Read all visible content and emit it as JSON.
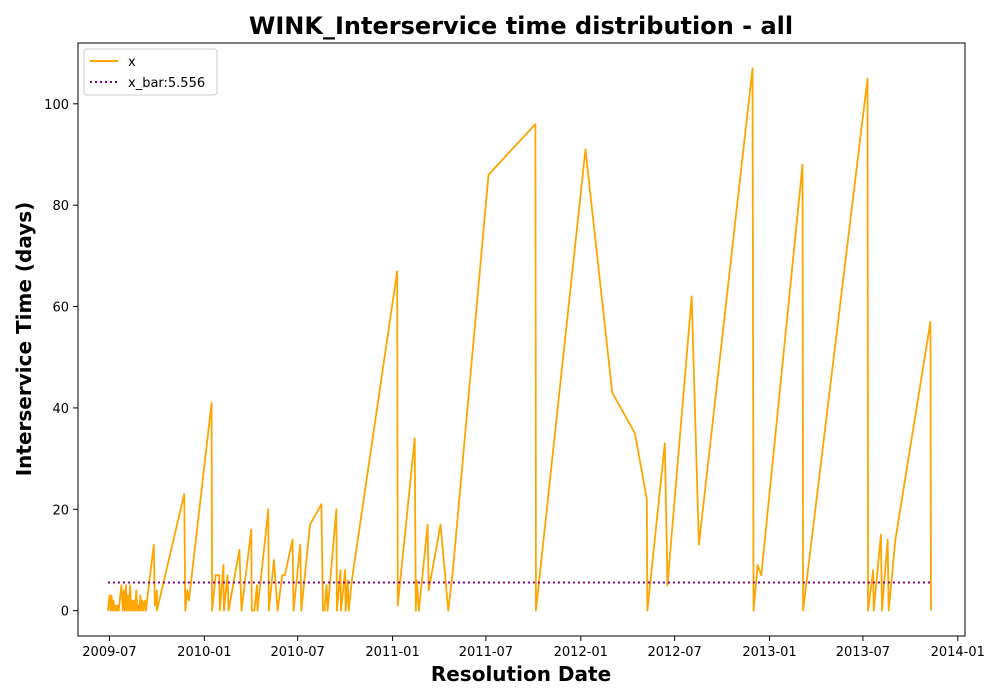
{
  "chart_data": {
    "type": "line",
    "title": "WINK_Interservice time distribution - all",
    "xlabel": "Resolution Date",
    "ylabel": "Interservice Time (days)",
    "x_axis_type": "date",
    "xlim": [
      "2009-05-01",
      "2014-01-15"
    ],
    "ylim": [
      -5,
      112
    ],
    "xticks": [
      "2009-07",
      "2010-01",
      "2010-07",
      "2011-01",
      "2011-07",
      "2012-01",
      "2012-07",
      "2013-01",
      "2013-07",
      "2014-01"
    ],
    "yticks": [
      0,
      20,
      40,
      60,
      80,
      100
    ],
    "grid": false,
    "legend_position": "upper-left",
    "colors": {
      "x": "#ffa500",
      "x_bar": "#800080"
    },
    "series": [
      {
        "name": "x",
        "style": "solid",
        "points": [
          [
            "2009-06-28",
            0
          ],
          [
            "2009-07-01",
            3
          ],
          [
            "2009-07-03",
            0
          ],
          [
            "2009-07-05",
            3
          ],
          [
            "2009-07-07",
            0
          ],
          [
            "2009-07-09",
            2
          ],
          [
            "2009-07-11",
            0
          ],
          [
            "2009-07-13",
            1
          ],
          [
            "2009-07-15",
            0
          ],
          [
            "2009-07-17",
            1
          ],
          [
            "2009-07-19",
            0
          ],
          [
            "2009-07-24",
            5
          ],
          [
            "2009-07-27",
            0
          ],
          [
            "2009-07-29",
            4
          ],
          [
            "2009-07-31",
            0
          ],
          [
            "2009-08-02",
            5
          ],
          [
            "2009-08-04",
            0
          ],
          [
            "2009-08-06",
            3
          ],
          [
            "2009-08-08",
            0
          ],
          [
            "2009-08-10",
            5
          ],
          [
            "2009-08-12",
            0
          ],
          [
            "2009-08-14",
            2
          ],
          [
            "2009-08-16",
            0
          ],
          [
            "2009-08-18",
            2
          ],
          [
            "2009-08-20",
            0
          ],
          [
            "2009-08-22",
            4
          ],
          [
            "2009-08-24",
            0
          ],
          [
            "2009-08-26",
            1
          ],
          [
            "2009-08-28",
            0
          ],
          [
            "2009-08-30",
            3
          ],
          [
            "2009-09-01",
            0
          ],
          [
            "2009-09-03",
            2
          ],
          [
            "2009-09-05",
            0
          ],
          [
            "2009-09-08",
            2
          ],
          [
            "2009-09-10",
            0
          ],
          [
            "2009-09-13",
            3
          ],
          [
            "2009-09-25",
            13
          ],
          [
            "2009-09-27",
            1
          ],
          [
            "2009-10-01",
            4
          ],
          [
            "2009-10-01",
            0
          ],
          [
            "2009-11-23",
            23
          ],
          [
            "2009-11-25",
            0
          ],
          [
            "2009-11-29",
            4
          ],
          [
            "2009-12-02",
            2
          ],
          [
            "2010-01-15",
            41
          ],
          [
            "2010-01-16",
            0
          ],
          [
            "2010-01-23",
            7
          ],
          [
            "2010-01-30",
            7
          ],
          [
            "2010-01-31",
            0
          ],
          [
            "2010-02-07",
            9
          ],
          [
            "2010-02-08",
            0
          ],
          [
            "2010-02-15",
            7
          ],
          [
            "2010-02-17",
            0
          ],
          [
            "2010-03-10",
            12
          ],
          [
            "2010-03-14",
            0
          ],
          [
            "2010-04-02",
            16
          ],
          [
            "2010-04-03",
            0
          ],
          [
            "2010-04-08",
            0
          ],
          [
            "2010-04-13",
            5
          ],
          [
            "2010-04-14",
            0
          ],
          [
            "2010-05-05",
            20
          ],
          [
            "2010-05-06",
            0
          ],
          [
            "2010-05-16",
            10
          ],
          [
            "2010-05-23",
            0
          ],
          [
            "2010-06-01",
            7
          ],
          [
            "2010-06-06",
            7
          ],
          [
            "2010-06-21",
            14
          ],
          [
            "2010-06-23",
            0
          ],
          [
            "2010-07-06",
            13
          ],
          [
            "2010-07-08",
            0
          ],
          [
            "2010-07-25",
            17
          ],
          [
            "2010-08-16",
            21
          ],
          [
            "2010-08-19",
            0
          ],
          [
            "2010-08-22",
            0
          ],
          [
            "2010-08-26",
            5
          ],
          [
            "2010-08-28",
            0
          ],
          [
            "2010-09-14",
            20
          ],
          [
            "2010-09-15",
            0
          ],
          [
            "2010-09-22",
            8
          ],
          [
            "2010-09-23",
            0
          ],
          [
            "2010-10-01",
            8
          ],
          [
            "2010-10-02",
            0
          ],
          [
            "2010-10-06",
            6
          ],
          [
            "2010-10-08",
            0
          ],
          [
            "2010-10-14",
            6
          ],
          [
            "2011-01-10",
            67
          ],
          [
            "2011-01-11",
            1
          ],
          [
            "2011-02-13",
            34
          ],
          [
            "2011-02-15",
            0
          ],
          [
            "2011-02-17",
            6
          ],
          [
            "2011-02-21",
            0
          ],
          [
            "2011-03-10",
            17
          ],
          [
            "2011-03-12",
            4
          ],
          [
            "2011-04-04",
            17
          ],
          [
            "2011-04-19",
            0
          ],
          [
            "2011-04-28",
            8
          ],
          [
            "2011-07-06",
            86
          ],
          [
            "2011-10-05",
            96
          ],
          [
            "2011-10-06",
            0
          ],
          [
            "2012-01-10",
            91
          ],
          [
            "2012-03-02",
            43
          ],
          [
            "2012-04-15",
            35
          ],
          [
            "2012-05-08",
            22
          ],
          [
            "2012-05-09",
            0
          ],
          [
            "2012-06-12",
            33
          ],
          [
            "2012-06-17",
            5
          ],
          [
            "2012-08-03",
            62
          ],
          [
            "2012-08-17",
            13
          ],
          [
            "2012-11-29",
            107
          ],
          [
            "2012-12-01",
            0
          ],
          [
            "2012-12-09",
            9
          ],
          [
            "2012-12-16",
            7
          ],
          [
            "2013-03-06",
            88
          ],
          [
            "2013-03-07",
            0
          ],
          [
            "2013-07-10",
            105
          ],
          [
            "2013-07-11",
            0
          ],
          [
            "2013-07-21",
            8
          ],
          [
            "2013-07-22",
            0
          ],
          [
            "2013-08-05",
            15
          ],
          [
            "2013-08-07",
            0
          ],
          [
            "2013-08-18",
            14
          ],
          [
            "2013-08-20",
            0
          ],
          [
            "2013-09-02",
            14
          ],
          [
            "2013-11-09",
            57
          ],
          [
            "2013-11-10",
            0
          ]
        ]
      },
      {
        "name": "x_bar:5.556",
        "style": "dotted",
        "points": [
          [
            "2009-06-28",
            5.556
          ],
          [
            "2013-11-10",
            5.556
          ]
        ]
      }
    ]
  }
}
